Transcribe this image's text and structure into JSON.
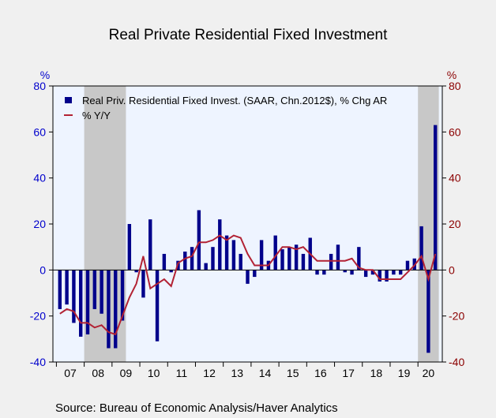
{
  "chart_data": {
    "type": "bar+line",
    "title": "Real Private Residential Fixed Investment",
    "source": "Source:  Bureau of Economic Analysis/Haver Analytics",
    "left_axis": {
      "unit": "%",
      "ylim": [
        -40,
        80
      ],
      "ticks": [
        "80",
        "60",
        "40",
        "20",
        "0",
        "-20",
        "-40"
      ],
      "color": "#0000cc"
    },
    "right_axis": {
      "unit": "%",
      "ylim": [
        -40,
        80
      ],
      "ticks": [
        "80",
        "60",
        "40",
        "20",
        "0",
        "-20",
        "-40"
      ],
      "color": "#8b0000"
    },
    "x_axis": {
      "years": [
        "07",
        "08",
        "09",
        "10",
        "11",
        "12",
        "13",
        "14",
        "15",
        "16",
        "17",
        "18",
        "19",
        "20"
      ],
      "quarters": [
        "2007Q1",
        "2020Q3"
      ]
    },
    "recessions": [
      [
        "2008Q1",
        "2009Q2"
      ],
      [
        "2020Q1",
        "2020Q3"
      ]
    ],
    "series": [
      {
        "name": "Real Priv. Residential Fixed Invest. (SAAR, Chn.2012$), % Chg AR",
        "kind": "bar",
        "color": "#00008b",
        "values": [
          -17,
          -15,
          -23,
          -29,
          -28,
          -17,
          -19,
          -34,
          -34,
          -22,
          20,
          -1,
          -12,
          22,
          -31,
          7,
          -1,
          4,
          8,
          10,
          26,
          3,
          10,
          22,
          15,
          13,
          7,
          -6,
          -3,
          13,
          4,
          15,
          9,
          10,
          11,
          7,
          14,
          -2,
          -2,
          7,
          11,
          -1,
          -2,
          10,
          -3,
          -2,
          -5,
          -5,
          -2,
          -2,
          4,
          5,
          19,
          -36,
          63
        ]
      },
      {
        "name": "% Y/Y",
        "kind": "line",
        "color": "#b22234",
        "values": [
          -19,
          -17,
          -18,
          -23,
          -23,
          -25,
          -24,
          -27,
          -28,
          -20,
          -12,
          -6,
          6,
          -8,
          -6,
          -4,
          -7,
          3,
          5,
          6,
          12,
          12,
          13,
          15,
          13,
          15,
          14,
          7,
          2,
          2,
          2,
          6,
          10,
          10,
          9,
          10,
          7,
          4,
          4,
          4,
          4,
          4,
          5,
          1,
          0,
          0,
          -4,
          -4,
          -4,
          -4,
          -1,
          2,
          6,
          -4,
          7
        ]
      }
    ]
  }
}
